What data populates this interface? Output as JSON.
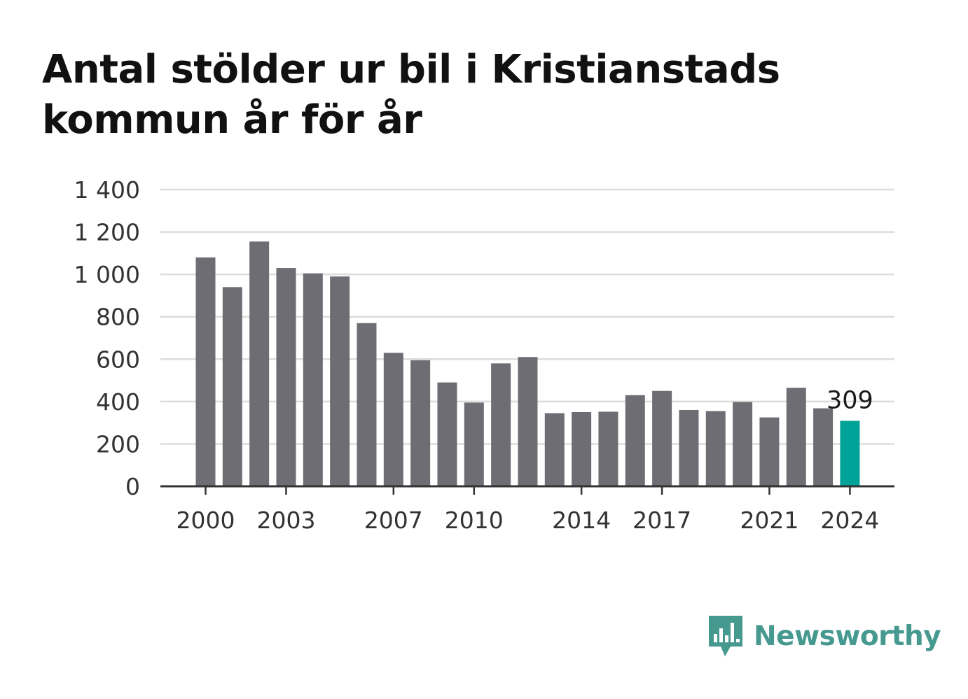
{
  "brand": {
    "name": "Newsworthy",
    "logo_icon": "newsworthy-bar-chart-speech-bubble-icon",
    "color": "#46998f"
  },
  "chart_data": {
    "type": "bar",
    "title": "Antal stölder ur bil i Kristianstads kommun år för år",
    "categories": [
      "2000",
      "2001",
      "2002",
      "2003",
      "2004",
      "2005",
      "2006",
      "2007",
      "2008",
      "2009",
      "2010",
      "2011",
      "2012",
      "2013",
      "2014",
      "2015",
      "2016",
      "2017",
      "2018",
      "2019",
      "2020",
      "2021",
      "2022",
      "2023",
      "2024"
    ],
    "values": [
      1080,
      940,
      1155,
      1030,
      1005,
      990,
      770,
      630,
      595,
      490,
      395,
      580,
      610,
      345,
      350,
      352,
      430,
      450,
      360,
      355,
      398,
      325,
      465,
      368,
      309
    ],
    "x_tick_labels": [
      "2000",
      "2003",
      "2007",
      "2010",
      "2014",
      "2017",
      "2021",
      "2024"
    ],
    "y_ticks": [
      0,
      200,
      400,
      600,
      800,
      1000,
      1200,
      1400
    ],
    "y_tick_labels": [
      "0",
      "200",
      "400",
      "600",
      "800",
      "1 000",
      "1 200",
      "1 400"
    ],
    "ylim": [
      0,
      1400
    ],
    "xlabel": "",
    "ylabel": "",
    "grid": true,
    "legend": "none",
    "highlight": {
      "category": "2024",
      "label": "309",
      "color": "#00a398"
    },
    "bar_color": "#6e6d73"
  }
}
